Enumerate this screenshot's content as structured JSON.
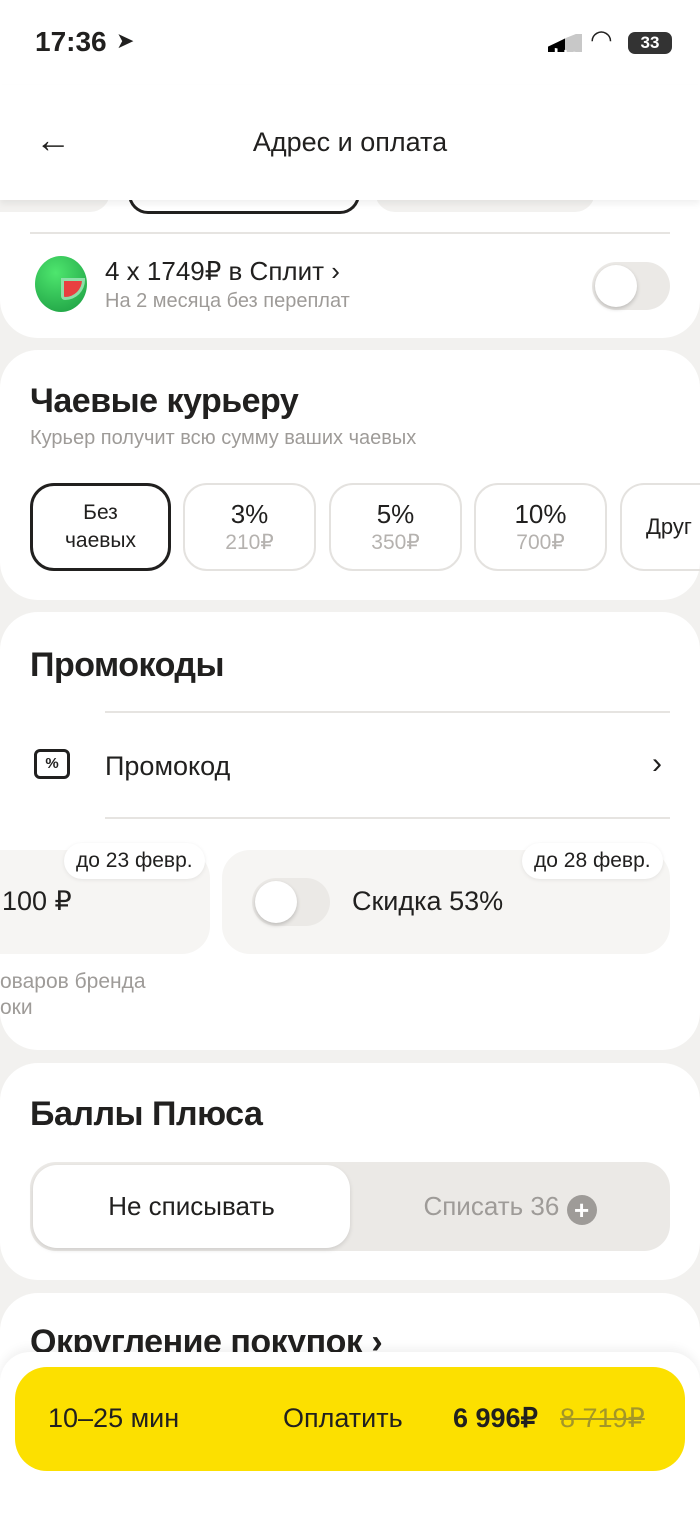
{
  "status": {
    "time": "17:36",
    "battery": "33"
  },
  "header": {
    "title": "Адрес и оплата"
  },
  "split": {
    "title": "4 x 1749₽ в Сплит",
    "subtitle": "На 2 месяца без переплат",
    "enabled": false
  },
  "tips": {
    "title": "Чаевые курьеру",
    "subtitle": "Курьер получит всю сумму ваших чаевых",
    "options": [
      {
        "line1": "Без",
        "line2": "чаевых",
        "selected": true
      },
      {
        "line1": "3%",
        "line2": "210₽"
      },
      {
        "line1": "5%",
        "line2": "350₽"
      },
      {
        "line1": "10%",
        "line2": "700₽"
      },
      {
        "line1": "Друг"
      }
    ]
  },
  "promo": {
    "title": "Промокоды",
    "row_label": "Промокод",
    "cards": [
      {
        "badge": "до 23 февр.",
        "value": "100 ₽",
        "desc1": "оваров бренда",
        "desc2": "оки"
      },
      {
        "badge": "до 28 февр.",
        "value": "Скидка 53%",
        "enabled": false
      }
    ]
  },
  "plus": {
    "title": "Баллы Плюса",
    "options": [
      "Не списывать",
      "Списать 36"
    ],
    "selected": 0
  },
  "rounding": {
    "title": "Округление покупок"
  },
  "pay": {
    "eta": "10–25 мин",
    "label": "Оплатить",
    "price": "6 996₽",
    "old_price": "8 719₽",
    "color": "#fce000"
  }
}
